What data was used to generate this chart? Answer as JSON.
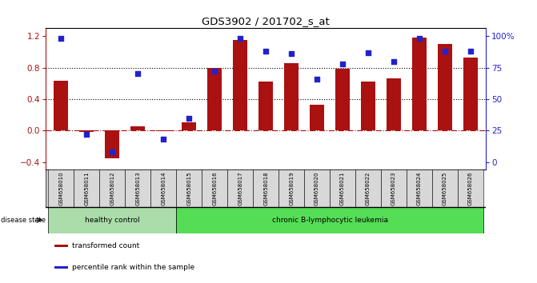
{
  "title": "GDS3902 / 201702_s_at",
  "samples": [
    "GSM658010",
    "GSM658011",
    "GSM658012",
    "GSM658013",
    "GSM658014",
    "GSM658015",
    "GSM658016",
    "GSM658017",
    "GSM658018",
    "GSM658019",
    "GSM658020",
    "GSM658021",
    "GSM658022",
    "GSM658023",
    "GSM658024",
    "GSM658025",
    "GSM658026"
  ],
  "transformed_count": [
    0.63,
    -0.02,
    -0.35,
    0.05,
    -0.01,
    0.1,
    0.8,
    1.15,
    0.62,
    0.86,
    0.33,
    0.79,
    0.62,
    0.66,
    1.18,
    1.1,
    0.93
  ],
  "percentile_rank": [
    98,
    22,
    8,
    70,
    18,
    35,
    72,
    98,
    88,
    86,
    66,
    78,
    87,
    80,
    98,
    88,
    88
  ],
  "bar_color": "#aa1111",
  "dot_color": "#2222cc",
  "ylim_left": [
    -0.5,
    1.3
  ],
  "yticks_left": [
    -0.4,
    0.0,
    0.4,
    0.8,
    1.2
  ],
  "ylim_right": [
    -16.67,
    108.33
  ],
  "yticks_right": [
    0,
    25,
    50,
    75,
    100
  ],
  "yticklabels_right": [
    "0",
    "25",
    "50",
    "75",
    "100%"
  ],
  "dotted_lines": [
    0.4,
    0.8
  ],
  "disease_groups": [
    {
      "label": "healthy control",
      "start": 0,
      "end": 5,
      "color": "#aaddaa"
    },
    {
      "label": "chronic B-lymphocytic leukemia",
      "start": 5,
      "end": 17,
      "color": "#55dd55"
    }
  ],
  "disease_state_label": "disease state",
  "legend_items": [
    {
      "label": "transformed count",
      "color": "#aa1111"
    },
    {
      "label": "percentile rank within the sample",
      "color": "#2222cc"
    }
  ],
  "bar_color_healthy": "#aaddaa",
  "bar_color_leukemia": "#55dd55",
  "bg_color": "#ffffff",
  "bar_width": 0.55,
  "right_axis_color": "#2222cc"
}
